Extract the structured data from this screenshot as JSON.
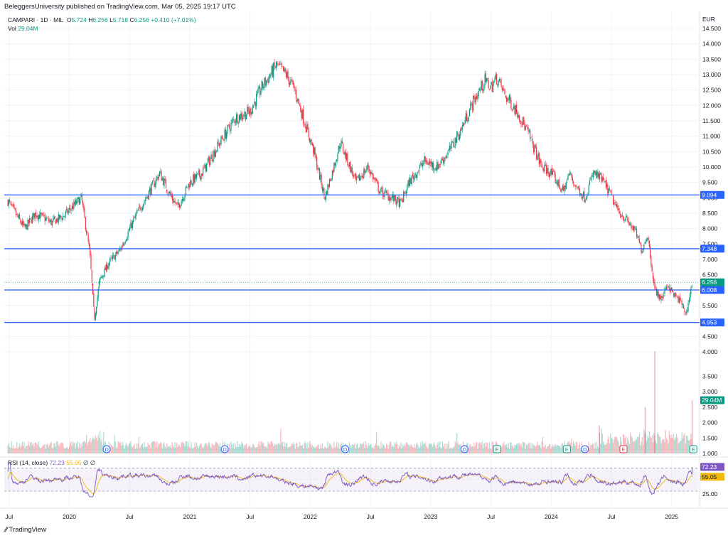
{
  "header": {
    "caption": "BeleggersUniversity published on TradingView.com, Mar 05, 2025 19:17 UTC",
    "symbol": "CAMPARI · 1D · MIL",
    "open_label": "O",
    "open": "5.724",
    "high_label": "H",
    "high": "6.256",
    "low_label": "L",
    "low": "5.718",
    "close_label": "C",
    "close": "6.256",
    "change": "+0.410 (+7.01%)",
    "vol_label": "Vol",
    "vol": "29.04M",
    "currency": "EUR"
  },
  "rsi_legend": {
    "label": "RSI (14, close)",
    "rsi": "72.23",
    "sma": "55.05",
    "extra1": "∅",
    "extra2": "∅"
  },
  "footer": {
    "brand": "TradingView"
  },
  "colors": {
    "up": "#089981",
    "down": "#f23645",
    "hline": "#2962ff",
    "rsi": "#7e57c2",
    "rsi_sma": "#f0b90b",
    "last_price": "#089981"
  },
  "chart_data": {
    "type": "candlestick",
    "price_axis": {
      "min": 4.0,
      "max": 14.5,
      "ticks": [
        "14.500",
        "14.000",
        "13.500",
        "13.000",
        "12.500",
        "12.000",
        "11.500",
        "11.000",
        "10.500",
        "10.000",
        "9.500",
        "9.000",
        "8.500",
        "8.000",
        "7.500",
        "7.000",
        "6.500",
        "6.000",
        "5.500",
        "5.000",
        "4.500",
        "4.000"
      ]
    },
    "volume_axis_ticks": [
      "3.500",
      "3.000",
      "2.500",
      "2.000",
      "1.500",
      "1.000"
    ],
    "volume_axis_values": [
      3.5,
      3.0,
      2.5,
      2.0,
      1.5,
      1.0
    ],
    "time_axis": [
      {
        "label": "Jul",
        "t": 2019.5
      },
      {
        "label": "2020",
        "t": 2020.0
      },
      {
        "label": "Jul",
        "t": 2020.5
      },
      {
        "label": "2021",
        "t": 2021.0
      },
      {
        "label": "Jul",
        "t": 2021.5
      },
      {
        "label": "2022",
        "t": 2022.0
      },
      {
        "label": "Jul",
        "t": 2022.5
      },
      {
        "label": "2023",
        "t": 2023.0
      },
      {
        "label": "Jul",
        "t": 2023.5
      },
      {
        "label": "2024",
        "t": 2024.0
      },
      {
        "label": "Jul",
        "t": 2024.5
      },
      {
        "label": "2025",
        "t": 2025.0
      }
    ],
    "close_path": [
      [
        2019.49,
        8.9
      ],
      [
        2019.55,
        8.5
      ],
      [
        2019.63,
        8.0
      ],
      [
        2019.72,
        8.5
      ],
      [
        2019.85,
        8.2
      ],
      [
        2019.95,
        8.4
      ],
      [
        2020.1,
        9.0
      ],
      [
        2020.17,
        7.2
      ],
      [
        2020.2,
        5.5
      ],
      [
        2020.21,
        5.1
      ],
      [
        2020.25,
        6.3
      ],
      [
        2020.33,
        6.9
      ],
      [
        2020.42,
        7.3
      ],
      [
        2020.55,
        8.4
      ],
      [
        2020.65,
        9.1
      ],
      [
        2020.75,
        9.8
      ],
      [
        2020.85,
        9.0
      ],
      [
        2020.9,
        8.7
      ],
      [
        2021.0,
        9.5
      ],
      [
        2021.1,
        9.8
      ],
      [
        2021.25,
        10.8
      ],
      [
        2021.38,
        11.6
      ],
      [
        2021.5,
        11.8
      ],
      [
        2021.6,
        12.6
      ],
      [
        2021.72,
        13.3
      ],
      [
        2021.8,
        13.0
      ],
      [
        2021.87,
        12.5
      ],
      [
        2021.95,
        11.5
      ],
      [
        2022.03,
        10.5
      ],
      [
        2022.12,
        9.0
      ],
      [
        2022.18,
        9.8
      ],
      [
        2022.25,
        10.8
      ],
      [
        2022.32,
        10.1
      ],
      [
        2022.38,
        9.5
      ],
      [
        2022.48,
        10.0
      ],
      [
        2022.58,
        9.2
      ],
      [
        2022.68,
        9.0
      ],
      [
        2022.75,
        8.8
      ],
      [
        2022.82,
        9.5
      ],
      [
        2022.95,
        10.2
      ],
      [
        2023.05,
        10.0
      ],
      [
        2023.15,
        10.5
      ],
      [
        2023.25,
        11.2
      ],
      [
        2023.35,
        12.1
      ],
      [
        2023.45,
        12.8
      ],
      [
        2023.5,
        12.6
      ],
      [
        2023.55,
        12.9
      ],
      [
        2023.62,
        12.3
      ],
      [
        2023.72,
        11.8
      ],
      [
        2023.82,
        11.0
      ],
      [
        2023.92,
        10.0
      ],
      [
        2024.0,
        9.8
      ],
      [
        2024.1,
        9.2
      ],
      [
        2024.15,
        9.8
      ],
      [
        2024.2,
        9.4
      ],
      [
        2024.28,
        9.0
      ],
      [
        2024.35,
        9.8
      ],
      [
        2024.42,
        9.6
      ],
      [
        2024.48,
        9.2
      ],
      [
        2024.55,
        8.6
      ],
      [
        2024.62,
        8.3
      ],
      [
        2024.7,
        7.9
      ],
      [
        2024.75,
        7.3
      ],
      [
        2024.8,
        7.8
      ],
      [
        2024.86,
        6.0
      ],
      [
        2024.92,
        5.7
      ],
      [
        2024.96,
        6.2
      ],
      [
        2025.03,
        5.8
      ],
      [
        2025.08,
        5.6
      ],
      [
        2025.12,
        5.2
      ],
      [
        2025.17,
        6.25
      ]
    ],
    "hlines": [
      {
        "value": "9.094",
        "price": 9.094
      },
      {
        "value": "7.348",
        "price": 7.348
      },
      {
        "value": "6.008",
        "price": 6.008
      },
      {
        "value": "4.953",
        "price": 4.953
      }
    ],
    "last_price": {
      "value": "6.256",
      "price": 6.256
    },
    "volume_last": {
      "value": "29.04M",
      "level": 2.72
    },
    "events": [
      {
        "type": "D",
        "t": 2020.31
      },
      {
        "type": "D",
        "t": 2021.29
      },
      {
        "type": "D",
        "t": 2022.29
      },
      {
        "type": "D",
        "t": 2023.28
      },
      {
        "type": "E",
        "t": 2023.55
      },
      {
        "type": "E",
        "t": 2024.13
      },
      {
        "type": "D",
        "t": 2024.28
      },
      {
        "type": "E",
        "t": 2024.6
      },
      {
        "type": "E",
        "t": 2025.18
      }
    ],
    "rsi": {
      "axis": [
        {
          "label": "72.23",
          "value": 72.23,
          "boxed": true
        },
        {
          "label": "55.05",
          "value": 55.05,
          "boxed": true
        },
        {
          "label": "25.00",
          "value": 25
        }
      ],
      "band_upper": 70,
      "band_lower": 30,
      "last": 72.23,
      "sma_last": 55.05
    }
  }
}
